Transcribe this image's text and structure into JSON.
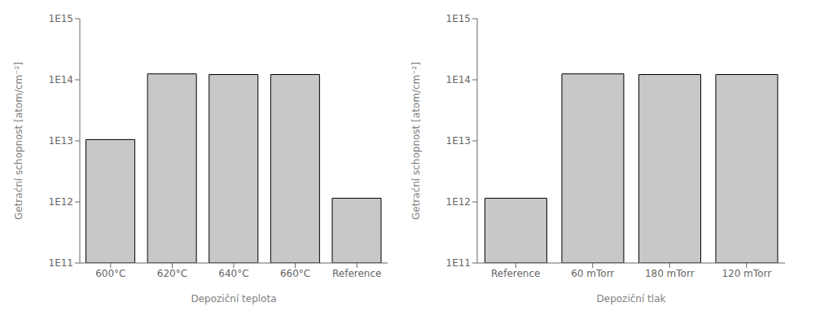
{
  "chart_data": [
    {
      "type": "bar",
      "categories": [
        "600°C",
        "620°C",
        "640°C",
        "660°C",
        "Reference"
      ],
      "values": [
        10500000000000.0,
        125000000000000.0,
        122000000000000.0,
        122000000000000.0,
        1150000000000.0
      ],
      "xlabel": "Depoziční teplota",
      "ylabel": "Getraćní schopnost [atom/cm⁻²]",
      "ylim": [
        100000000000.0,
        1000000000000000.0
      ],
      "yticks": [
        {
          "value": 100000000000.0,
          "label": "1E11"
        },
        {
          "value": 1000000000000.0,
          "label": "1E12"
        },
        {
          "value": 10000000000000.0,
          "label": "1E13"
        },
        {
          "value": 100000000000000.0,
          "label": "1E14"
        },
        {
          "value": 1000000000000000.0,
          "label": "1E15"
        }
      ],
      "log": "y",
      "color": "#c8c8c8",
      "grid": false
    },
    {
      "type": "bar",
      "categories": [
        "Reference",
        "60 mTorr",
        "180 mTorr",
        "120 mTorr"
      ],
      "values": [
        1150000000000.0,
        125000000000000.0,
        122000000000000.0,
        122000000000000.0
      ],
      "xlabel": "Depoziční tlak",
      "ylabel": "Getraćní schopnost [atom/cm⁻²]",
      "ylim": [
        100000000000.0,
        1000000000000000.0
      ],
      "yticks": [
        {
          "value": 100000000000.0,
          "label": "1E11"
        },
        {
          "value": 1000000000000.0,
          "label": "1E12"
        },
        {
          "value": 10000000000000.0,
          "label": "1E13"
        },
        {
          "value": 100000000000000.0,
          "label": "1E14"
        },
        {
          "value": 1000000000000000.0,
          "label": "1E15"
        }
      ],
      "log": "y",
      "color": "#c8c8c8",
      "grid": false
    }
  ]
}
